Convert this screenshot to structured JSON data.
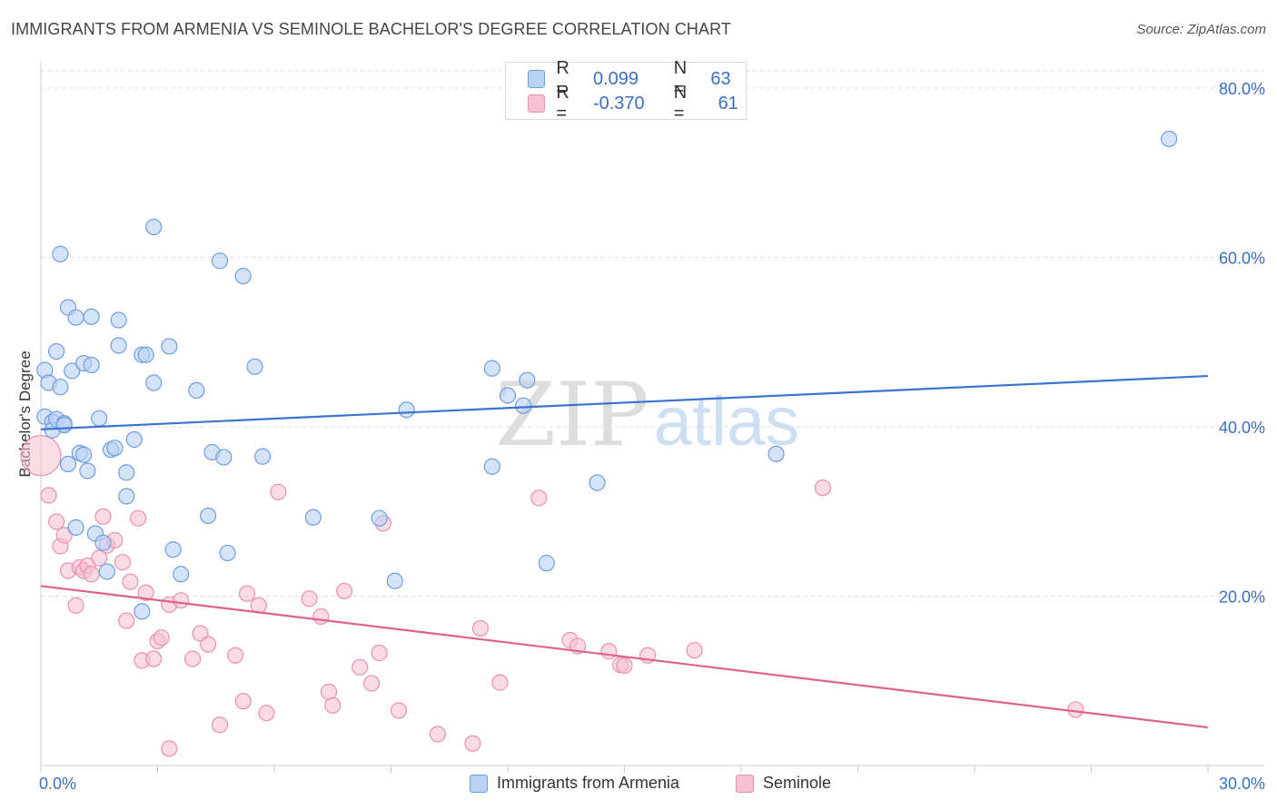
{
  "title": "IMMIGRANTS FROM ARMENIA VS SEMINOLE BACHELOR'S DEGREE CORRELATION CHART",
  "source": "Source: ZipAtlas.com",
  "watermark": {
    "zip": "ZIP",
    "atlas": "atlas"
  },
  "legend_top": [
    {
      "r_label": "R =",
      "r_value": "0.099",
      "n_label": "N =",
      "n_value": "63"
    },
    {
      "r_label": "R =",
      "r_value": "-0.370",
      "n_label": "N =",
      "n_value": "61"
    }
  ],
  "legend_bottom": [
    "Immigrants from Armenia",
    "Seminole"
  ],
  "colors": {
    "blue": "#3a74d0",
    "blue_fill": "#b9d1f3",
    "pink": "#e0608f",
    "pink_fill": "#f7c1d2",
    "tick_text": "#3a6fc4"
  },
  "chart_data": {
    "type": "scatter",
    "title": "IMMIGRANTS FROM ARMENIA VS SEMINOLE BACHELOR'S DEGREE CORRELATION CHART",
    "xlabel": "",
    "ylabel": "Bachelor's Degree",
    "xlim": [
      0,
      30
    ],
    "ylim": [
      0,
      80
    ],
    "x_tick_labels": [
      "0.0%",
      "30.0%"
    ],
    "y_ticks": [
      20,
      40,
      60,
      80
    ],
    "y_tick_labels": [
      "20.0%",
      "40.0%",
      "60.0%",
      "80.0%"
    ],
    "grid": true,
    "series": [
      {
        "name": "Immigrants from Armenia",
        "color": "#3a74d0",
        "R": 0.099,
        "N": 63,
        "trend": {
          "x": [
            0,
            30
          ],
          "y": [
            39.7,
            46.0
          ]
        },
        "points": [
          [
            0.1,
            41.2
          ],
          [
            0.1,
            46.7
          ],
          [
            0.2,
            45.2
          ],
          [
            0.3,
            40.6
          ],
          [
            0.3,
            39.6
          ],
          [
            0.4,
            40.9
          ],
          [
            0.4,
            48.9
          ],
          [
            0.5,
            44.7
          ],
          [
            0.5,
            60.4
          ],
          [
            0.6,
            40.4
          ],
          [
            0.6,
            40.2
          ],
          [
            0.7,
            54.1
          ],
          [
            0.7,
            35.6
          ],
          [
            0.8,
            46.6
          ],
          [
            0.9,
            28.1
          ],
          [
            0.9,
            52.9
          ],
          [
            1.0,
            36.9
          ],
          [
            1.1,
            36.7
          ],
          [
            1.1,
            47.5
          ],
          [
            1.2,
            34.8
          ],
          [
            1.3,
            47.3
          ],
          [
            1.3,
            53.0
          ],
          [
            1.4,
            27.4
          ],
          [
            1.5,
            41.0
          ],
          [
            1.6,
            26.3
          ],
          [
            1.7,
            22.9
          ],
          [
            1.8,
            37.3
          ],
          [
            1.9,
            37.5
          ],
          [
            2.0,
            52.6
          ],
          [
            2.0,
            49.6
          ],
          [
            2.2,
            34.6
          ],
          [
            2.2,
            31.8
          ],
          [
            2.4,
            38.5
          ],
          [
            2.6,
            48.5
          ],
          [
            2.6,
            18.2
          ],
          [
            2.7,
            48.5
          ],
          [
            2.9,
            45.2
          ],
          [
            2.9,
            63.6
          ],
          [
            3.3,
            49.5
          ],
          [
            3.4,
            25.5
          ],
          [
            3.6,
            22.6
          ],
          [
            4.0,
            44.3
          ],
          [
            4.3,
            29.5
          ],
          [
            4.4,
            37.0
          ],
          [
            4.6,
            59.6
          ],
          [
            4.7,
            36.4
          ],
          [
            4.8,
            25.1
          ],
          [
            5.2,
            57.8
          ],
          [
            5.5,
            47.1
          ],
          [
            5.7,
            36.5
          ],
          [
            7.0,
            29.3
          ],
          [
            8.7,
            29.2
          ],
          [
            9.1,
            21.8
          ],
          [
            9.4,
            42.0
          ],
          [
            11.6,
            46.9
          ],
          [
            11.6,
            35.3
          ],
          [
            12.0,
            43.7
          ],
          [
            12.4,
            42.5
          ],
          [
            12.5,
            45.5
          ],
          [
            13.0,
            23.9
          ],
          [
            14.3,
            33.4
          ],
          [
            18.9,
            36.8
          ],
          [
            29.0,
            74.0
          ]
        ]
      },
      {
        "name": "Seminole",
        "color": "#e0608f",
        "R": -0.37,
        "N": 61,
        "trend": {
          "x": [
            0,
            30
          ],
          "y": [
            21.2,
            4.5
          ]
        },
        "points": [
          [
            0.0,
            36.6
          ],
          [
            0.2,
            31.9
          ],
          [
            0.4,
            28.8
          ],
          [
            0.5,
            25.9
          ],
          [
            0.6,
            27.2
          ],
          [
            0.7,
            23.0
          ],
          [
            0.9,
            18.9
          ],
          [
            1.0,
            23.4
          ],
          [
            1.1,
            23.0
          ],
          [
            1.2,
            23.6
          ],
          [
            1.3,
            22.6
          ],
          [
            1.5,
            24.5
          ],
          [
            1.6,
            29.4
          ],
          [
            1.7,
            26.0
          ],
          [
            1.9,
            26.6
          ],
          [
            2.1,
            24.0
          ],
          [
            2.2,
            17.1
          ],
          [
            2.3,
            21.7
          ],
          [
            2.5,
            29.2
          ],
          [
            2.6,
            12.4
          ],
          [
            2.7,
            20.4
          ],
          [
            2.9,
            12.6
          ],
          [
            3.0,
            14.7
          ],
          [
            3.1,
            15.1
          ],
          [
            3.3,
            19.0
          ],
          [
            3.3,
            2.0
          ],
          [
            3.6,
            19.5
          ],
          [
            3.9,
            12.6
          ],
          [
            4.1,
            15.6
          ],
          [
            4.3,
            14.3
          ],
          [
            4.6,
            4.8
          ],
          [
            5.0,
            13.0
          ],
          [
            5.2,
            7.6
          ],
          [
            5.3,
            20.3
          ],
          [
            5.6,
            18.9
          ],
          [
            5.8,
            6.2
          ],
          [
            6.1,
            32.3
          ],
          [
            6.9,
            19.7
          ],
          [
            7.2,
            17.6
          ],
          [
            7.4,
            8.7
          ],
          [
            7.5,
            7.1
          ],
          [
            7.8,
            20.6
          ],
          [
            8.2,
            11.6
          ],
          [
            8.5,
            9.7
          ],
          [
            8.7,
            13.3
          ],
          [
            8.8,
            28.6
          ],
          [
            9.2,
            6.5
          ],
          [
            10.2,
            3.7
          ],
          [
            11.1,
            2.6
          ],
          [
            11.3,
            16.2
          ],
          [
            11.8,
            9.8
          ],
          [
            12.8,
            31.6
          ],
          [
            13.6,
            14.8
          ],
          [
            13.8,
            14.1
          ],
          [
            14.6,
            13.5
          ],
          [
            14.9,
            11.9
          ],
          [
            15.0,
            11.8
          ],
          [
            15.6,
            13.0
          ],
          [
            16.8,
            13.6
          ],
          [
            20.1,
            32.8
          ],
          [
            26.6,
            6.6
          ]
        ]
      }
    ]
  }
}
